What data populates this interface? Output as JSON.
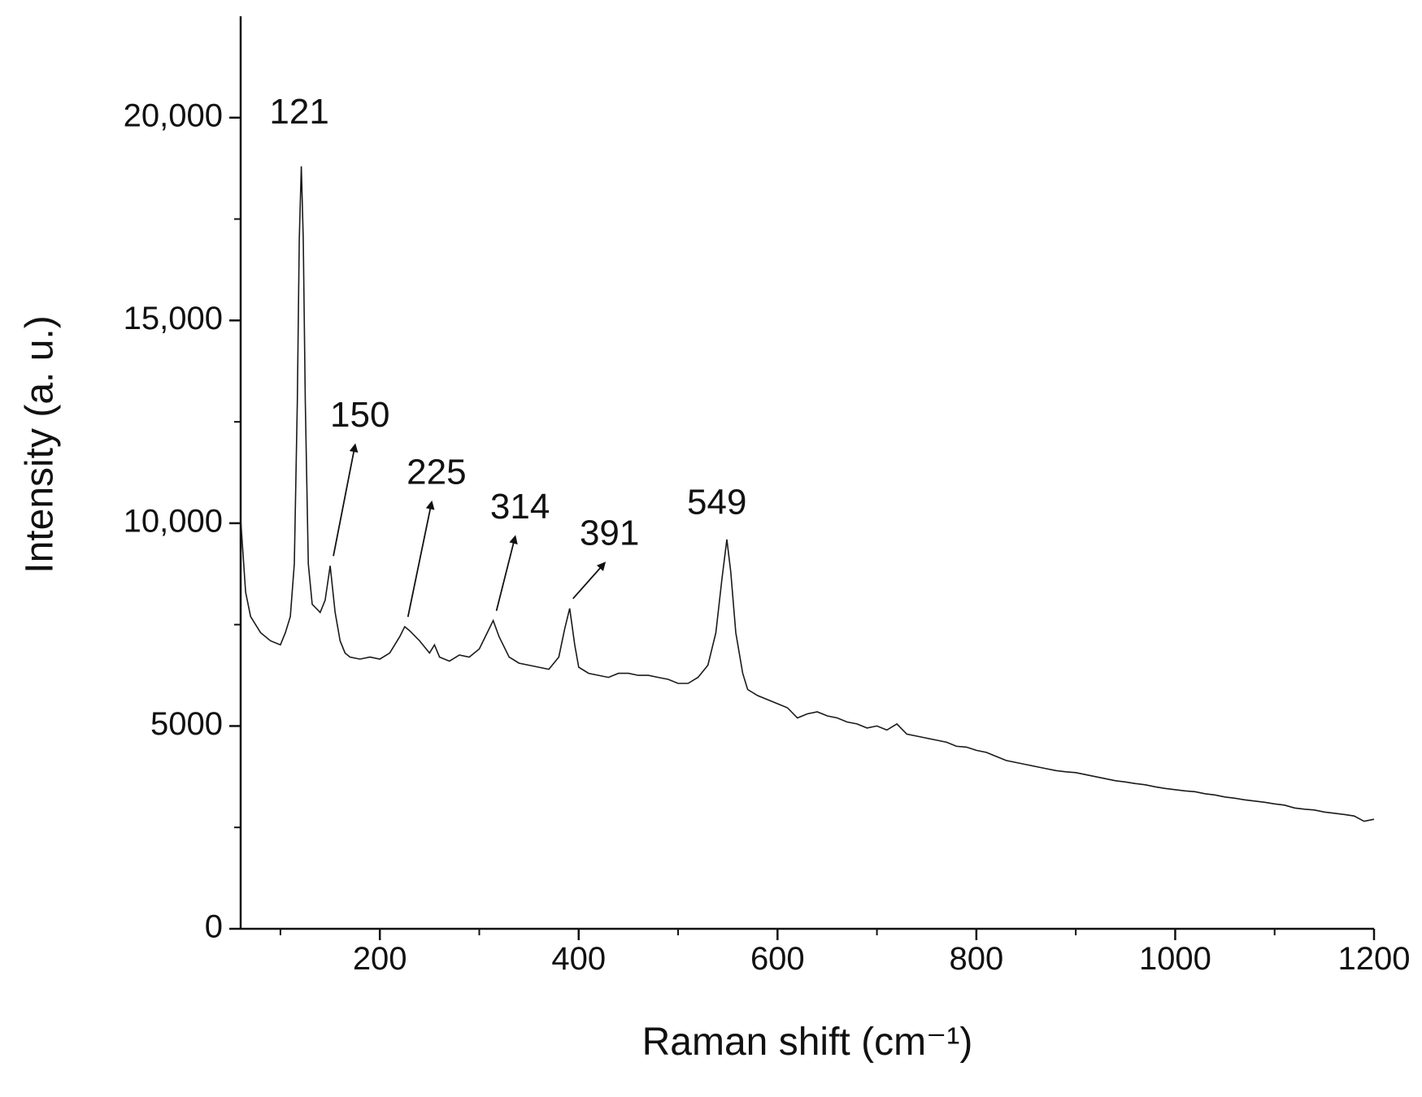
{
  "chart_data": {
    "type": "line",
    "x_label": "Raman shift (cm⁻¹)",
    "y_label": "Intensity (a. u.)",
    "xlim": [
      60,
      1200
    ],
    "ylim": [
      0,
      22500
    ],
    "xticks": [
      200,
      400,
      600,
      800,
      1000,
      1200
    ],
    "xminorticks": [
      100,
      300,
      500,
      700,
      900,
      1100
    ],
    "yticks": [
      0,
      5000,
      {
        "value": 10000,
        "label": "10,000"
      },
      {
        "value": 15000,
        "label": "15,000"
      },
      {
        "value": 20000,
        "label": "20,000"
      }
    ],
    "yminorticks": [
      2500,
      7500,
      12500,
      17500
    ],
    "grid": false,
    "series": [
      {
        "color": "#1a1a1a",
        "x": [
          60,
          65,
          70,
          80,
          90,
          100,
          105,
          110,
          114,
          117,
          119,
          121,
          123,
          125,
          128,
          132,
          140,
          145,
          150,
          155,
          160,
          165,
          170,
          180,
          190,
          200,
          210,
          220,
          225,
          230,
          240,
          250,
          255,
          260,
          270,
          280,
          290,
          300,
          308,
          314,
          320,
          330,
          340,
          350,
          360,
          370,
          380,
          386,
          391,
          396,
          400,
          410,
          420,
          430,
          440,
          450,
          460,
          470,
          480,
          490,
          500,
          510,
          520,
          530,
          538,
          544,
          549,
          553,
          558,
          565,
          570,
          580,
          590,
          600,
          610,
          620,
          630,
          640,
          650,
          660,
          670,
          680,
          690,
          700,
          710,
          720,
          730,
          740,
          750,
          760,
          770,
          780,
          790,
          800,
          810,
          820,
          830,
          840,
          850,
          860,
          870,
          880,
          890,
          900,
          910,
          920,
          930,
          940,
          950,
          960,
          970,
          980,
          990,
          1000,
          1010,
          1020,
          1030,
          1040,
          1050,
          1060,
          1070,
          1080,
          1090,
          1100,
          1110,
          1120,
          1130,
          1140,
          1150,
          1160,
          1170,
          1180,
          1190,
          1200
        ],
        "values": [
          10100,
          8300,
          7700,
          7300,
          7100,
          7000,
          7300,
          7700,
          9000,
          13000,
          17000,
          18800,
          17000,
          13000,
          9000,
          8000,
          7800,
          8100,
          8950,
          7800,
          7100,
          6800,
          6700,
          6650,
          6700,
          6650,
          6800,
          7200,
          7450,
          7350,
          7100,
          6800,
          7000,
          6700,
          6600,
          6750,
          6700,
          6900,
          7300,
          7600,
          7200,
          6700,
          6550,
          6500,
          6450,
          6400,
          6700,
          7400,
          7900,
          7000,
          6450,
          6300,
          6250,
          6200,
          6300,
          6300,
          6250,
          6250,
          6200,
          6150,
          6050,
          6050,
          6200,
          6500,
          7300,
          8600,
          9600,
          8800,
          7300,
          6300,
          5900,
          5750,
          5650,
          5550,
          5450,
          5200,
          5300,
          5350,
          5250,
          5200,
          5100,
          5050,
          4950,
          5000,
          4900,
          5050,
          4800,
          4750,
          4700,
          4650,
          4600,
          4500,
          4480,
          4400,
          4350,
          4250,
          4150,
          4100,
          4050,
          4000,
          3950,
          3900,
          3870,
          3850,
          3800,
          3750,
          3700,
          3650,
          3620,
          3580,
          3550,
          3500,
          3460,
          3430,
          3400,
          3380,
          3330,
          3300,
          3250,
          3220,
          3180,
          3150,
          3120,
          3080,
          3050,
          2980,
          2950,
          2930,
          2880,
          2850,
          2820,
          2780,
          2650,
          2700
        ]
      }
    ],
    "annotations": [
      {
        "text": "121",
        "x": 119,
        "y": 20090,
        "arrow": false
      },
      {
        "text": "150",
        "x": 180,
        "y": 12610,
        "arrow": true
      },
      {
        "text": "225",
        "x": 257,
        "y": 11200,
        "arrow": true
      },
      {
        "text": "314",
        "x": 341,
        "y": 10350,
        "arrow": true
      },
      {
        "text": "391",
        "x": 431,
        "y": 9700,
        "arrow": true
      },
      {
        "text": "549",
        "x": 539,
        "y": 10460,
        "arrow": false
      }
    ]
  }
}
